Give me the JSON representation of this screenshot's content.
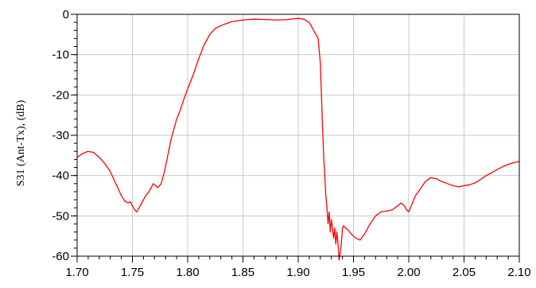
{
  "chart_data": {
    "type": "line",
    "title": "",
    "xlabel": "",
    "ylabel": "S31 (Ant-Tx), (dB)",
    "xlim": [
      1.7,
      2.1
    ],
    "ylim": [
      -60,
      0
    ],
    "grid": true,
    "x_ticks": [
      "1.70",
      "1.75",
      "1.80",
      "1.85",
      "1.90",
      "1.95",
      "2.00",
      "2.05",
      "2.10"
    ],
    "y_ticks": [
      "0",
      "-10",
      "-20",
      "-30",
      "-40",
      "-50",
      "-60"
    ],
    "colors": {
      "series": "#ff0000",
      "grid": "#c8c8c8",
      "axes": "#000000"
    },
    "series": [
      {
        "name": "",
        "x": [
          1.7,
          1.705,
          1.71,
          1.715,
          1.72,
          1.725,
          1.73,
          1.735,
          1.74,
          1.743,
          1.746,
          1.748,
          1.75,
          1.752,
          1.754,
          1.756,
          1.758,
          1.76,
          1.762,
          1.765,
          1.767,
          1.769,
          1.771,
          1.773,
          1.776,
          1.779,
          1.782,
          1.785,
          1.788,
          1.79,
          1.793,
          1.796,
          1.8,
          1.805,
          1.81,
          1.815,
          1.82,
          1.825,
          1.83,
          1.835,
          1.84,
          1.85,
          1.86,
          1.87,
          1.88,
          1.89,
          1.9,
          1.905,
          1.91,
          1.915,
          1.918,
          1.92,
          1.921,
          1.922,
          1.923,
          1.924,
          1.925,
          1.926,
          1.927,
          1.928,
          1.929,
          1.93,
          1.931,
          1.932,
          1.933,
          1.934,
          1.935,
          1.936,
          1.937,
          1.938,
          1.939,
          1.94,
          1.941,
          1.943,
          1.945,
          1.948,
          1.952,
          1.956,
          1.96,
          1.965,
          1.97,
          1.975,
          1.98,
          1.985,
          1.99,
          1.993,
          1.996,
          1.998,
          2.0,
          2.003,
          2.006,
          2.01,
          2.015,
          2.02,
          2.025,
          2.03,
          2.035,
          2.04,
          2.045,
          2.05,
          2.055,
          2.06,
          2.065,
          2.07,
          2.075,
          2.08,
          2.085,
          2.09,
          2.095,
          2.1
        ],
        "y": [
          -35.5,
          -34.5,
          -34.0,
          -34.3,
          -35.5,
          -37.0,
          -39.0,
          -42.0,
          -45.0,
          -46.3,
          -46.8,
          -46.5,
          -47.5,
          -48.5,
          -49.0,
          -48.0,
          -47.0,
          -46.0,
          -45.0,
          -44.0,
          -43.0,
          -42.0,
          -42.5,
          -43.0,
          -42.0,
          -39.0,
          -35.0,
          -31.0,
          -28.0,
          -26.0,
          -24.0,
          -21.5,
          -18.5,
          -15.0,
          -11.0,
          -7.5,
          -5.0,
          -3.5,
          -2.8,
          -2.3,
          -1.8,
          -1.4,
          -1.2,
          -1.3,
          -1.4,
          -1.3,
          -1.0,
          -1.2,
          -2.0,
          -4.5,
          -6.0,
          -12.0,
          -20.0,
          -28.0,
          -35.0,
          -40.0,
          -45.0,
          -48.0,
          -52.0,
          -49.0,
          -54.0,
          -51.0,
          -53.0,
          -55.5,
          -53.0,
          -57.0,
          -54.0,
          -57.0,
          -61.0,
          -59.0,
          -57.0,
          -53.0,
          -52.5,
          -53.0,
          -53.5,
          -54.5,
          -55.5,
          -56.0,
          -54.5,
          -52.0,
          -50.0,
          -49.0,
          -48.8,
          -48.5,
          -47.5,
          -46.8,
          -47.5,
          -48.5,
          -49.0,
          -47.0,
          -45.0,
          -43.5,
          -41.5,
          -40.5,
          -40.8,
          -41.5,
          -42.0,
          -42.5,
          -42.8,
          -42.5,
          -42.3,
          -41.8,
          -41.0,
          -40.0,
          -39.3,
          -38.5,
          -37.8,
          -37.2,
          -36.8,
          -36.5
        ]
      }
    ]
  }
}
